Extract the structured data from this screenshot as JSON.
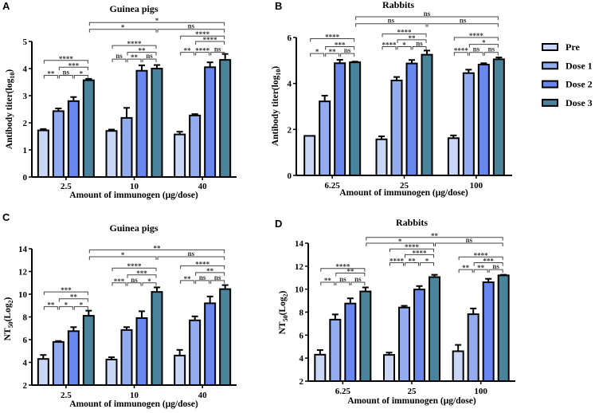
{
  "legend": [
    {
      "label": "Pre",
      "color": "#c9d6f5"
    },
    {
      "label": "Dose 1",
      "color": "#93acef"
    },
    {
      "label": "Dose 2",
      "color": "#6a87ef"
    },
    {
      "label": "Dose 3",
      "color": "#4a849c"
    }
  ],
  "chart_data": [
    {
      "panel": "A",
      "type": "bar",
      "title": "Guinea pigs",
      "ylabel": [
        {
          "t": "Antibody titer(log"
        },
        {
          "t": "10",
          "sub": true
        },
        {
          "t": ")"
        }
      ],
      "xlabel": "Amount of  immunogen (μg/dose)",
      "categories": [
        "2.5",
        "10",
        "40"
      ],
      "ylim": [
        0,
        5
      ],
      "yticks": [
        "0",
        "1",
        "2",
        "3",
        "4",
        "5"
      ],
      "series": [
        {
          "name": "Pre",
          "values": [
            1.72,
            1.7,
            1.57
          ],
          "errors": [
            0.05,
            0.05,
            0.1
          ]
        },
        {
          "name": "Dose 1",
          "values": [
            2.43,
            2.18,
            2.27
          ],
          "errors": [
            0.1,
            0.37,
            0.05
          ]
        },
        {
          "name": "Dose 2",
          "values": [
            2.8,
            3.92,
            4.05
          ],
          "errors": [
            0.15,
            0.2,
            0.18
          ]
        },
        {
          "name": "Dose 3",
          "values": [
            3.57,
            4.0,
            4.32
          ],
          "errors": [
            0.05,
            0.13,
            0.22
          ]
        }
      ],
      "comparisons": [
        {
          "from": [
            0,
            0
          ],
          "to": [
            0,
            1
          ],
          "label": "**",
          "y": 3.75
        },
        {
          "from": [
            0,
            1
          ],
          "to": [
            0,
            2
          ],
          "label": "ns",
          "y": 3.75
        },
        {
          "from": [
            0,
            2
          ],
          "to": [
            0,
            3
          ],
          "label": "*",
          "y": 3.75
        },
        {
          "from": [
            0,
            1
          ],
          "to": [
            0,
            3
          ],
          "label": "***",
          "y": 4.05
        },
        {
          "from": [
            0,
            0
          ],
          "to": [
            0,
            3
          ],
          "label": "****",
          "y": 4.3
        },
        {
          "from": [
            1,
            0
          ],
          "to": [
            1,
            1
          ],
          "label": "ns",
          "y": 4.35
        },
        {
          "from": [
            1,
            1
          ],
          "to": [
            1,
            2
          ],
          "label": "**",
          "y": 4.35
        },
        {
          "from": [
            1,
            2
          ],
          "to": [
            1,
            3
          ],
          "label": "ns",
          "y": 4.35
        },
        {
          "from": [
            1,
            1
          ],
          "to": [
            1,
            3
          ],
          "label": "**",
          "y": 4.6
        },
        {
          "from": [
            1,
            0
          ],
          "to": [
            1,
            3
          ],
          "label": "****",
          "y": 4.85
        },
        {
          "from": [
            2,
            0
          ],
          "to": [
            2,
            1
          ],
          "label": "**",
          "y": 4.6
        },
        {
          "from": [
            2,
            1
          ],
          "to": [
            2,
            2
          ],
          "label": "****",
          "y": 4.6
        },
        {
          "from": [
            2,
            2
          ],
          "to": [
            2,
            3
          ],
          "label": "ns",
          "y": 4.6
        },
        {
          "from": [
            2,
            1
          ],
          "to": [
            2,
            3
          ],
          "label": "****",
          "y": 5.0
        },
        {
          "from": [
            2,
            0
          ],
          "to": [
            2,
            3
          ],
          "label": "****",
          "y": 5.2
        },
        {
          "from": [
            0,
            3
          ],
          "to": [
            1,
            3
          ],
          "label": "*",
          "y": 5.45
        },
        {
          "from": [
            1,
            3
          ],
          "to": [
            2,
            3
          ],
          "label": "ns",
          "y": 5.45
        },
        {
          "from": [
            0,
            3
          ],
          "to": [
            2,
            3
          ],
          "label": "*",
          "y": 5.7
        }
      ]
    },
    {
      "panel": "B",
      "type": "bar",
      "title": "Rabbits",
      "ylabel": [
        {
          "t": "Antibody titer(log"
        },
        {
          "t": "10",
          "sub": true
        },
        {
          "t": ")"
        }
      ],
      "xlabel": "Amount of  immunogen (μg/dose)",
      "categories": [
        "6.25",
        "25",
        "100"
      ],
      "ylim": [
        0,
        6
      ],
      "yticks": [
        "0",
        "2",
        "4",
        "6"
      ],
      "series": [
        {
          "name": "Pre",
          "values": [
            1.72,
            1.57,
            1.62
          ],
          "errors": [
            0.0,
            0.13,
            0.12
          ]
        },
        {
          "name": "Dose 1",
          "values": [
            3.22,
            4.13,
            4.45
          ],
          "errors": [
            0.25,
            0.15,
            0.15
          ]
        },
        {
          "name": "Dose 2",
          "values": [
            4.88,
            4.87,
            4.82
          ],
          "errors": [
            0.15,
            0.15,
            0.06
          ]
        },
        {
          "name": "Dose 3",
          "values": [
            4.92,
            5.25,
            5.05
          ],
          "errors": [
            0.03,
            0.18,
            0.08
          ]
        }
      ],
      "comparisons": [
        {
          "from": [
            0,
            0
          ],
          "to": [
            0,
            1
          ],
          "label": "*",
          "y": 5.3
        },
        {
          "from": [
            0,
            1
          ],
          "to": [
            0,
            2
          ],
          "label": "**",
          "y": 5.3
        },
        {
          "from": [
            0,
            2
          ],
          "to": [
            0,
            3
          ],
          "label": "ns",
          "y": 5.3
        },
        {
          "from": [
            0,
            1
          ],
          "to": [
            0,
            3
          ],
          "label": "***",
          "y": 5.6
        },
        {
          "from": [
            0,
            0
          ],
          "to": [
            0,
            3
          ],
          "label": "****",
          "y": 5.95
        },
        {
          "from": [
            1,
            0
          ],
          "to": [
            1,
            1
          ],
          "label": "****",
          "y": 5.6
        },
        {
          "from": [
            1,
            1
          ],
          "to": [
            1,
            2
          ],
          "label": "*",
          "y": 5.6
        },
        {
          "from": [
            1,
            2
          ],
          "to": [
            1,
            3
          ],
          "label": "ns",
          "y": 5.6
        },
        {
          "from": [
            1,
            1
          ],
          "to": [
            1,
            3
          ],
          "label": "**",
          "y": 5.9
        },
        {
          "from": [
            1,
            0
          ],
          "to": [
            1,
            3
          ],
          "label": "****",
          "y": 6.15
        },
        {
          "from": [
            2,
            0
          ],
          "to": [
            2,
            1
          ],
          "label": "****",
          "y": 5.35
        },
        {
          "from": [
            2,
            1
          ],
          "to": [
            2,
            2
          ],
          "label": "ns",
          "y": 5.35
        },
        {
          "from": [
            2,
            2
          ],
          "to": [
            2,
            3
          ],
          "label": "ns",
          "y": 5.35
        },
        {
          "from": [
            2,
            1
          ],
          "to": [
            2,
            3
          ],
          "label": "*",
          "y": 5.7
        },
        {
          "from": [
            2,
            0
          ],
          "to": [
            2,
            3
          ],
          "label": "****",
          "y": 6.0
        },
        {
          "from": [
            0,
            3
          ],
          "to": [
            1,
            3
          ],
          "label": "ns",
          "y": 6.6
        },
        {
          "from": [
            1,
            3
          ],
          "to": [
            2,
            3
          ],
          "label": "ns",
          "y": 6.6
        },
        {
          "from": [
            0,
            3
          ],
          "to": [
            2,
            3
          ],
          "label": "ns",
          "y": 6.9
        }
      ]
    },
    {
      "panel": "C",
      "type": "bar",
      "title": "Guinea pigs",
      "ylabel": [
        {
          "t": "NT"
        },
        {
          "t": "50",
          "sub": true
        },
        {
          "t": "(Log"
        },
        {
          "t": "2",
          "sub": true
        },
        {
          "t": ")"
        }
      ],
      "xlabel": "Amount of  immunogen (μg/dose)",
      "categories": [
        "2.5",
        "10",
        "40"
      ],
      "ylim": [
        2,
        14
      ],
      "yticks": [
        "2",
        "4",
        "6",
        "8",
        "10",
        "12",
        "14"
      ],
      "series": [
        {
          "name": "Pre",
          "values": [
            4.3,
            4.25,
            4.6
          ],
          "errors": [
            0.35,
            0.2,
            0.5
          ]
        },
        {
          "name": "Dose 1",
          "values": [
            5.8,
            6.85,
            7.7
          ],
          "errors": [
            0.08,
            0.25,
            0.35
          ]
        },
        {
          "name": "Dose 2",
          "values": [
            6.75,
            7.9,
            9.2
          ],
          "errors": [
            0.35,
            0.6,
            0.6
          ]
        },
        {
          "name": "Dose 3",
          "values": [
            8.1,
            10.2,
            10.45
          ],
          "errors": [
            0.45,
            0.4,
            0.35
          ]
        }
      ],
      "comparisons": [
        {
          "from": [
            0,
            0
          ],
          "to": [
            0,
            1
          ],
          "label": "**",
          "y": 8.9
        },
        {
          "from": [
            0,
            1
          ],
          "to": [
            0,
            2
          ],
          "label": "*",
          "y": 8.9
        },
        {
          "from": [
            0,
            2
          ],
          "to": [
            0,
            3
          ],
          "label": "*",
          "y": 8.9
        },
        {
          "from": [
            0,
            1
          ],
          "to": [
            0,
            3
          ],
          "label": "**",
          "y": 9.6
        },
        {
          "from": [
            0,
            0
          ],
          "to": [
            0,
            3
          ],
          "label": "***",
          "y": 10.2
        },
        {
          "from": [
            1,
            0
          ],
          "to": [
            1,
            1
          ],
          "label": "***",
          "y": 11.0
        },
        {
          "from": [
            1,
            1
          ],
          "to": [
            1,
            2
          ],
          "label": "ns",
          "y": 11.0
        },
        {
          "from": [
            1,
            2
          ],
          "to": [
            1,
            3
          ],
          "label": "*",
          "y": 11.0
        },
        {
          "from": [
            1,
            1
          ],
          "to": [
            1,
            3
          ],
          "label": "***",
          "y": 11.7
        },
        {
          "from": [
            1,
            0
          ],
          "to": [
            1,
            3
          ],
          "label": "****",
          "y": 12.3
        },
        {
          "from": [
            2,
            0
          ],
          "to": [
            2,
            1
          ],
          "label": "**",
          "y": 11.2
        },
        {
          "from": [
            2,
            1
          ],
          "to": [
            2,
            2
          ],
          "label": "ns",
          "y": 11.2
        },
        {
          "from": [
            2,
            2
          ],
          "to": [
            2,
            3
          ],
          "label": "ns",
          "y": 11.2
        },
        {
          "from": [
            2,
            1
          ],
          "to": [
            2,
            3
          ],
          "label": "**",
          "y": 11.9
        },
        {
          "from": [
            2,
            0
          ],
          "to": [
            2,
            3
          ],
          "label": "****",
          "y": 12.5
        },
        {
          "from": [
            0,
            3
          ],
          "to": [
            1,
            3
          ],
          "label": "*",
          "y": 13.3
        },
        {
          "from": [
            1,
            3
          ],
          "to": [
            2,
            3
          ],
          "label": "ns",
          "y": 13.3
        },
        {
          "from": [
            0,
            3
          ],
          "to": [
            2,
            3
          ],
          "label": "**",
          "y": 13.9
        }
      ]
    },
    {
      "panel": "D",
      "type": "bar",
      "title": "Rabbits",
      "ylabel": [
        {
          "t": "NT"
        },
        {
          "t": "50",
          "sub": true
        },
        {
          "t": "(Log"
        },
        {
          "t": "2",
          "sub": true
        },
        {
          "t": ")"
        }
      ],
      "xlabel": "Amount of  immunogen (μg/dose)",
      "categories": [
        "6.25",
        "25",
        "100"
      ],
      "ylim": [
        2,
        14
      ],
      "yticks": [
        "2",
        "4",
        "6",
        "8",
        "10",
        "12",
        "14"
      ],
      "series": [
        {
          "name": "Pre",
          "values": [
            4.3,
            4.28,
            4.6
          ],
          "errors": [
            0.4,
            0.2,
            0.55
          ]
        },
        {
          "name": "Dose 1",
          "values": [
            7.35,
            8.4,
            7.82
          ],
          "errors": [
            0.45,
            0.15,
            0.5
          ]
        },
        {
          "name": "Dose 2",
          "values": [
            8.75,
            9.97,
            10.6
          ],
          "errors": [
            0.45,
            0.3,
            0.3
          ]
        },
        {
          "name": "Dose 3",
          "values": [
            9.8,
            11.05,
            11.2
          ],
          "errors": [
            0.35,
            0.2,
            0.05
          ]
        }
      ],
      "comparisons": [
        {
          "from": [
            0,
            0
          ],
          "to": [
            0,
            1
          ],
          "label": "**",
          "y": 10.6
        },
        {
          "from": [
            0,
            1
          ],
          "to": [
            0,
            2
          ],
          "label": "ns",
          "y": 10.6
        },
        {
          "from": [
            0,
            2
          ],
          "to": [
            0,
            3
          ],
          "label": "ns",
          "y": 10.6
        },
        {
          "from": [
            0,
            1
          ],
          "to": [
            0,
            3
          ],
          "label": "**",
          "y": 11.4
        },
        {
          "from": [
            0,
            0
          ],
          "to": [
            0,
            3
          ],
          "label": "****",
          "y": 11.8
        },
        {
          "from": [
            1,
            0
          ],
          "to": [
            1,
            1
          ],
          "label": "****",
          "y": 12.3
        },
        {
          "from": [
            1,
            1
          ],
          "to": [
            1,
            2
          ],
          "label": "**",
          "y": 12.3
        },
        {
          "from": [
            1,
            2
          ],
          "to": [
            1,
            3
          ],
          "label": "*",
          "y": 12.3
        },
        {
          "from": [
            1,
            1
          ],
          "to": [
            1,
            3
          ],
          "label": "****",
          "y": 13.0
        },
        {
          "from": [
            1,
            0
          ],
          "to": [
            1,
            3
          ],
          "label": "****",
          "y": 13.5
        },
        {
          "from": [
            2,
            0
          ],
          "to": [
            2,
            1
          ],
          "label": "**",
          "y": 11.7
        },
        {
          "from": [
            2,
            1
          ],
          "to": [
            2,
            2
          ],
          "label": "**",
          "y": 11.7
        },
        {
          "from": [
            2,
            2
          ],
          "to": [
            2,
            3
          ],
          "label": "ns",
          "y": 11.7
        },
        {
          "from": [
            2,
            1
          ],
          "to": [
            2,
            3
          ],
          "label": "***",
          "y": 12.3
        },
        {
          "from": [
            2,
            0
          ],
          "to": [
            2,
            3
          ],
          "label": "****",
          "y": 12.8
        },
        {
          "from": [
            0,
            3
          ],
          "to": [
            1,
            3
          ],
          "label": "*",
          "y": 14.0
        },
        {
          "from": [
            1,
            3
          ],
          "to": [
            2,
            3
          ],
          "label": "ns",
          "y": 14.0
        },
        {
          "from": [
            0,
            3
          ],
          "to": [
            2,
            3
          ],
          "label": "**",
          "y": 14.5
        }
      ]
    }
  ]
}
